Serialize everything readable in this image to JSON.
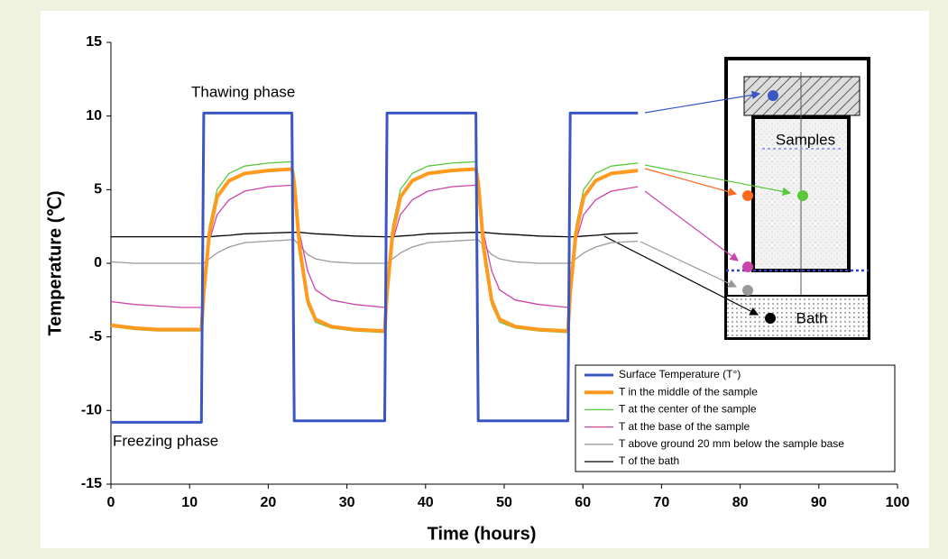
{
  "chart_data": {
    "type": "line",
    "x_label": "Time (hours)",
    "y_label": "Temperature (℃)",
    "annotations": [
      "Thawing phase",
      "Freezing phase",
      "Samples",
      "Bath"
    ],
    "xlim": [
      0,
      100
    ],
    "xticks": [
      0,
      10,
      20,
      30,
      40,
      50,
      60,
      70,
      80,
      90,
      100
    ],
    "ylim": [
      -15,
      15
    ],
    "yticks": [
      -15,
      -10,
      -5,
      0,
      5,
      10,
      15
    ],
    "grid": false,
    "legend": "lower right",
    "x": [
      0,
      3,
      6,
      9,
      11.5,
      11.8,
      12.5,
      13.5,
      15,
      17,
      20,
      23,
      23.3,
      24,
      25,
      26,
      28,
      31,
      34.8,
      35.1,
      35.8,
      36.8,
      38.3,
      40.3,
      43.3,
      46.4,
      46.7,
      47.4,
      48.4,
      49.4,
      51.4,
      54.4,
      58.1,
      58.4,
      59.1,
      60.1,
      61.6,
      63.6,
      67
    ],
    "series": [
      {
        "name": "Surface Temperature (T°)",
        "color": "#3a56c4",
        "width": 3,
        "values": [
          -10.8,
          -10.8,
          -10.8,
          -10.8,
          -10.8,
          10.2,
          10.2,
          10.2,
          10.2,
          10.2,
          10.2,
          10.2,
          -10.7,
          -10.7,
          -10.7,
          -10.7,
          -10.7,
          -10.7,
          -10.7,
          10.2,
          10.2,
          10.2,
          10.2,
          10.2,
          10.2,
          10.2,
          -10.7,
          -10.7,
          -10.7,
          -10.7,
          -10.7,
          -10.7,
          -10.7,
          10.2,
          10.2,
          10.2,
          10.2,
          10.2,
          10.2
        ]
      },
      {
        "name": "T in the middle of the sample",
        "color": "#ff9a1f",
        "width": 4,
        "values": [
          -4.2,
          -4.4,
          -4.5,
          -4.5,
          -4.5,
          -2,
          2,
          4.5,
          5.6,
          6.1,
          6.3,
          6.4,
          5.5,
          1,
          -2.5,
          -3.8,
          -4.3,
          -4.5,
          -4.6,
          -2,
          2,
          4.5,
          5.6,
          6.1,
          6.3,
          6.4,
          5.5,
          1,
          -2.5,
          -3.8,
          -4.3,
          -4.5,
          -4.6,
          -2,
          2,
          4.5,
          5.6,
          6.1,
          6.3
        ]
      },
      {
        "name": "T at the center of the sample",
        "color": "#5ac83a",
        "width": 1.3,
        "values": [
          -4.3,
          -4.5,
          -4.6,
          -4.6,
          -4.6,
          -2.5,
          2.5,
          5,
          6.1,
          6.6,
          6.8,
          6.9,
          6,
          1,
          -2.8,
          -4,
          -4.4,
          -4.6,
          -4.7,
          -2.5,
          2.5,
          5,
          6.1,
          6.6,
          6.8,
          6.9,
          6,
          1,
          -2.8,
          -4,
          -4.4,
          -4.6,
          -4.7,
          -2.5,
          2.5,
          5,
          6.1,
          6.6,
          6.8
        ]
      },
      {
        "name": "T at the base of the sample",
        "color": "#cc44aa",
        "width": 1.3,
        "values": [
          -2.6,
          -2.8,
          -2.9,
          -3,
          -3,
          -1.5,
          1.5,
          3.3,
          4.3,
          4.9,
          5.2,
          5.3,
          5,
          2,
          -0.5,
          -1.8,
          -2.5,
          -2.8,
          -3,
          -1.5,
          1.5,
          3.3,
          4.3,
          4.9,
          5.2,
          5.3,
          5,
          2,
          -0.5,
          -1.8,
          -2.5,
          -2.8,
          -3,
          -1.5,
          1.5,
          3.3,
          4.3,
          4.9,
          5.2
        ]
      },
      {
        "name": "T above ground 20 mm below the sample base",
        "color": "#9a9a9a",
        "width": 1.3,
        "values": [
          0.1,
          0,
          0,
          0,
          0,
          0,
          0.3,
          0.7,
          1.1,
          1.4,
          1.5,
          1.6,
          1.6,
          1.2,
          0.6,
          0.3,
          0.1,
          0,
          0,
          0,
          0.3,
          0.7,
          1.1,
          1.4,
          1.5,
          1.6,
          1.6,
          1.2,
          0.6,
          0.3,
          0.1,
          0,
          0,
          0,
          0.3,
          0.7,
          1.1,
          1.4,
          1.5
        ]
      },
      {
        "name": "T of the bath",
        "color": "#000000",
        "width": 1.3,
        "values": [
          1.8,
          1.8,
          1.8,
          1.8,
          1.8,
          1.8,
          1.8,
          1.85,
          1.9,
          2,
          2.05,
          2.1,
          2.1,
          2.1,
          2.05,
          2,
          1.95,
          1.85,
          1.8,
          1.8,
          1.8,
          1.85,
          1.9,
          2,
          2.05,
          2.1,
          2.1,
          2.1,
          2.05,
          2,
          1.95,
          1.85,
          1.8,
          1.8,
          1.8,
          1.85,
          1.9,
          2,
          2.05
        ]
      }
    ]
  }
}
